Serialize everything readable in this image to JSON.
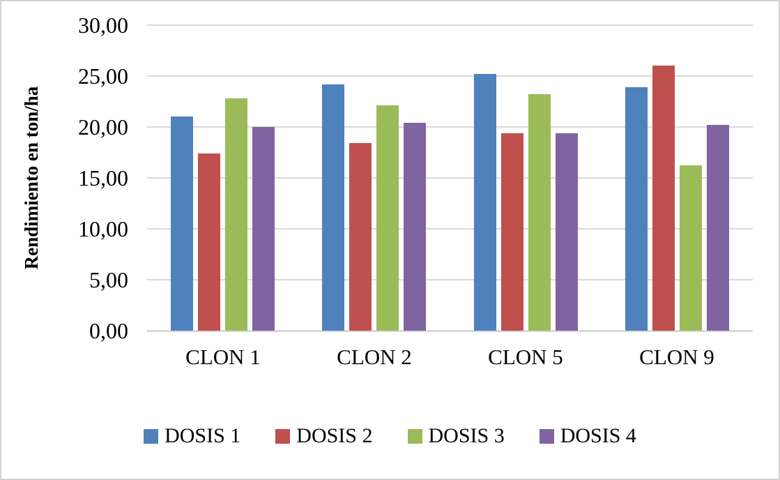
{
  "chart_data": {
    "type": "bar",
    "title": "",
    "ylabel": "Rendimiento en ton/ha",
    "xlabel": "",
    "categories": [
      "CLON 1",
      "CLON 2",
      "CLON 5",
      "CLON 9"
    ],
    "series": [
      {
        "name": "DOSIS 1",
        "color": "#4F81BD",
        "values": [
          21.0,
          24.2,
          25.2,
          23.9
        ]
      },
      {
        "name": "DOSIS 2",
        "color": "#C0504D",
        "values": [
          17.4,
          18.4,
          19.4,
          26.0
        ]
      },
      {
        "name": "DOSIS 3",
        "color": "#9BBB59",
        "values": [
          22.8,
          22.1,
          23.2,
          16.2
        ]
      },
      {
        "name": "DOSIS 4",
        "color": "#8064A2",
        "values": [
          20.0,
          20.4,
          19.4,
          20.2
        ]
      }
    ],
    "ylim": [
      0,
      30
    ],
    "ytick_step": 5,
    "yticks": [
      {
        "value": 0,
        "label": "0,00"
      },
      {
        "value": 5,
        "label": "5,00"
      },
      {
        "value": 10,
        "label": "10,00"
      },
      {
        "value": 15,
        "label": "15,00"
      },
      {
        "value": 20,
        "label": "20,00"
      },
      {
        "value": 25,
        "label": "25,00"
      },
      {
        "value": 30,
        "label": "30,00"
      }
    ],
    "grid": true,
    "gridline_color": "#D9D9D9",
    "legend_position": "bottom",
    "background_color": "#FFFFFF",
    "border_color": "#D2D2D2"
  }
}
